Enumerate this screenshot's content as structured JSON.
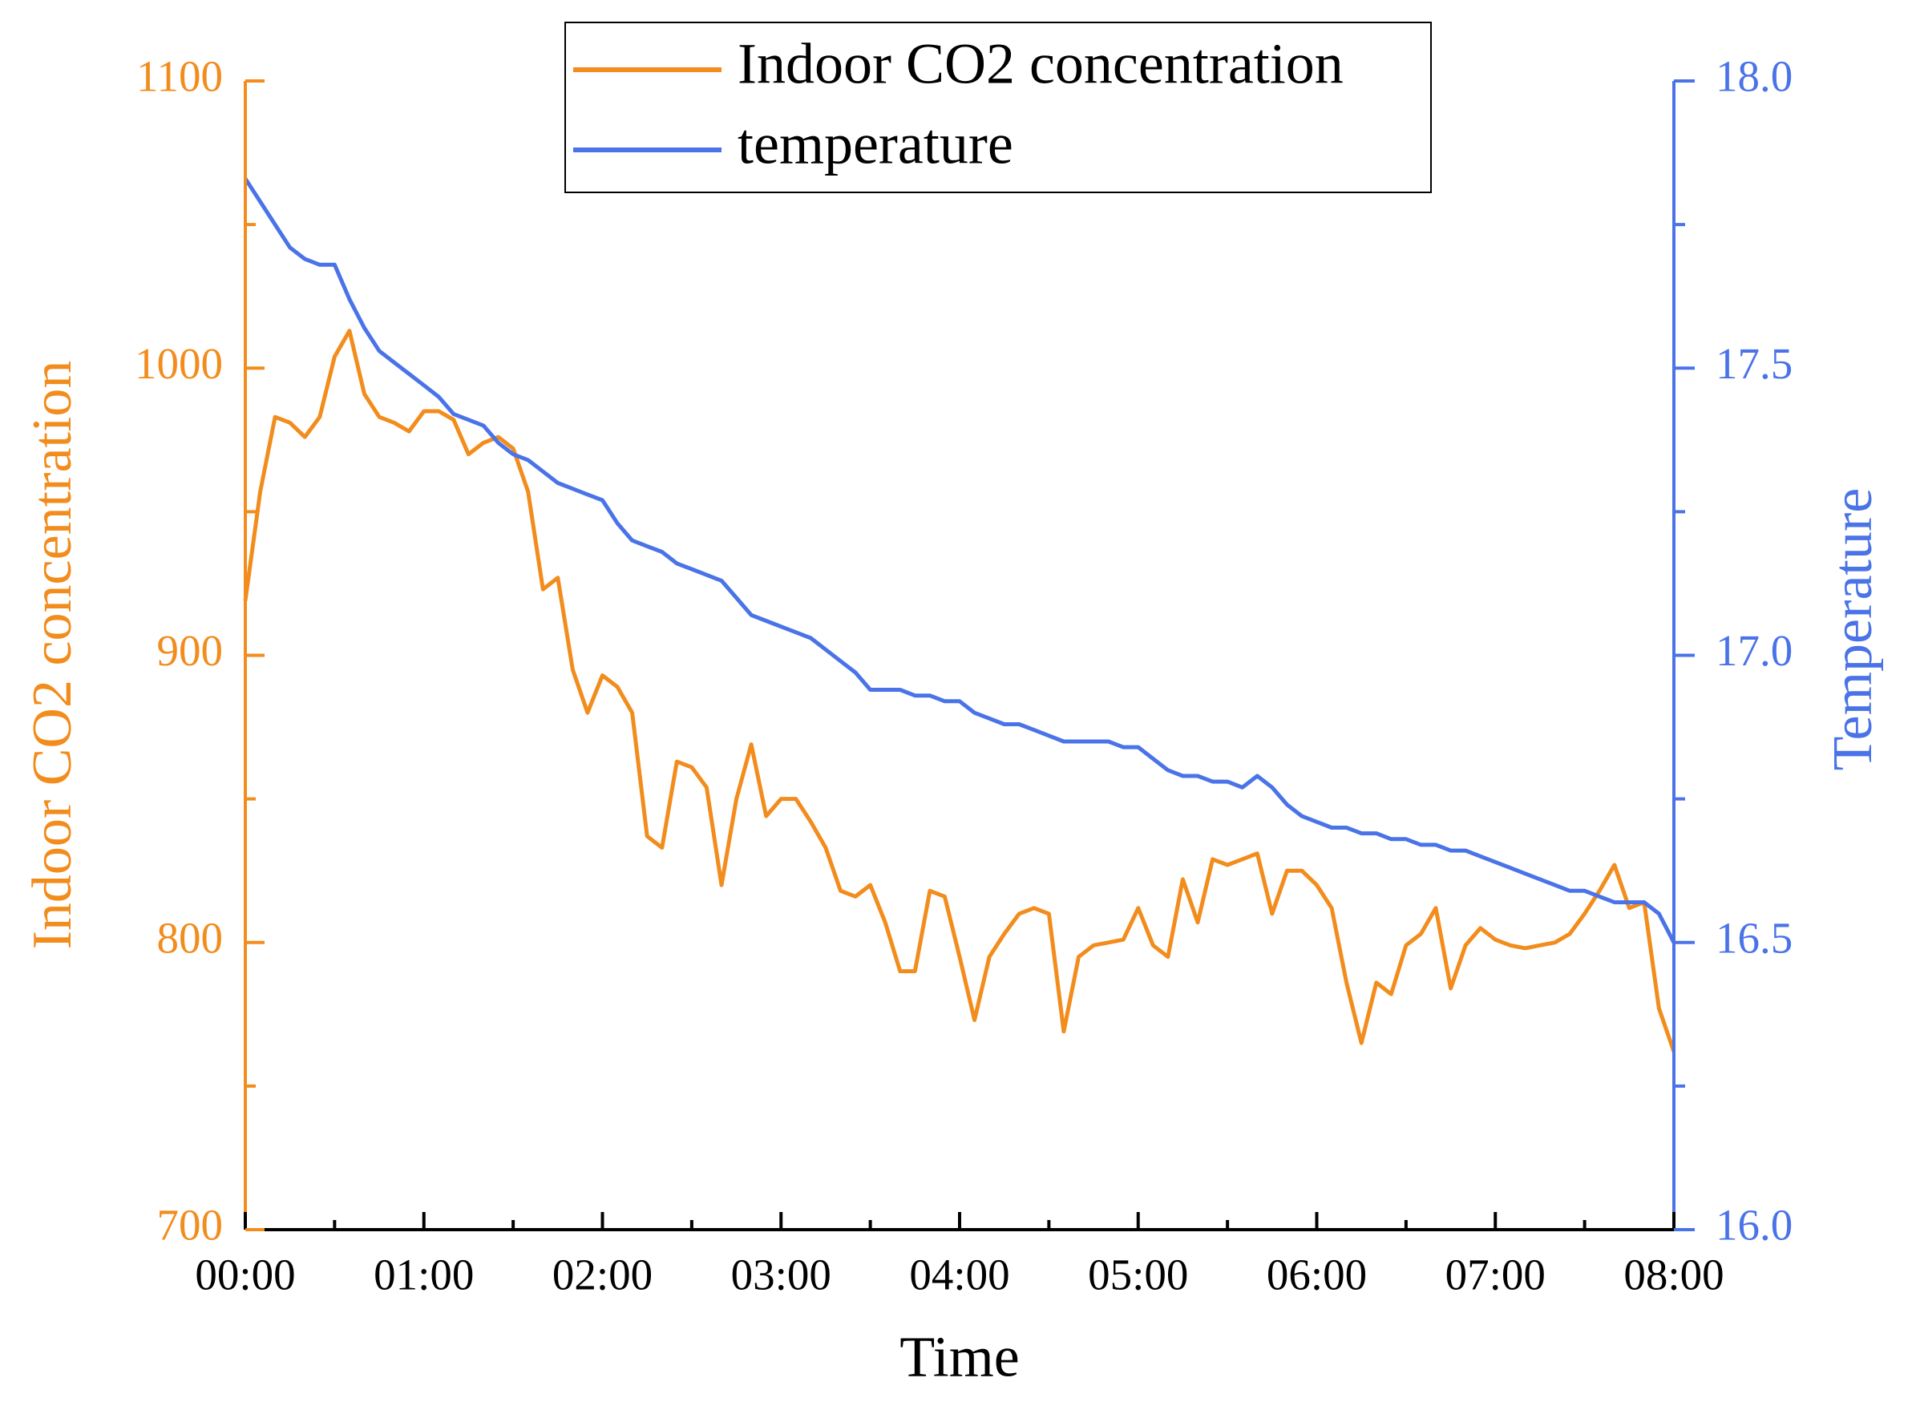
{
  "chart_data": {
    "type": "line",
    "x_label": "Time",
    "y_label": "Indoor CO2 concentration",
    "y2_label": "Temperature",
    "x": [
      0,
      5,
      10,
      15,
      20,
      25,
      30,
      35,
      40,
      45,
      50,
      55,
      60,
      65,
      70,
      75,
      80,
      85,
      90,
      95,
      100,
      105,
      110,
      115,
      120,
      125,
      130,
      135,
      140,
      145,
      150,
      155,
      160,
      165,
      170,
      175,
      180,
      185,
      190,
      195,
      200,
      205,
      210,
      215,
      220,
      225,
      230,
      235,
      240,
      245,
      250,
      255,
      260,
      265,
      270,
      275,
      280,
      285,
      290,
      295,
      300,
      305,
      310,
      315,
      320,
      325,
      330,
      335,
      340,
      345,
      350,
      355,
      360,
      365,
      370,
      375,
      380,
      385,
      390,
      395,
      400,
      405,
      410,
      415,
      420,
      425,
      430,
      435,
      440,
      445,
      450,
      455,
      460,
      465,
      470,
      475,
      480
    ],
    "series": [
      {
        "name": "Indoor CO2 concentration",
        "color": "#f28c1c",
        "axis": "y",
        "values": [
          919,
          957,
          983,
          981,
          976,
          983,
          1004,
          1013,
          991,
          983,
          981,
          978,
          985,
          985,
          982,
          970,
          974,
          976,
          972,
          957,
          923,
          927,
          895,
          880,
          893,
          889,
          880,
          837,
          833,
          863,
          861,
          854,
          820,
          850,
          869,
          844,
          850,
          850,
          842,
          833,
          818,
          816,
          820,
          807,
          790,
          790,
          818,
          816,
          795,
          773,
          795,
          803,
          810,
          812,
          810,
          769,
          795,
          799,
          800,
          801,
          812,
          799,
          795,
          822,
          807,
          829,
          827,
          829,
          831,
          810,
          825,
          825,
          820,
          812,
          786,
          765,
          786,
          782,
          799,
          803,
          812,
          784,
          799,
          805,
          801,
          799,
          798,
          799,
          800,
          803,
          810,
          818,
          827,
          812,
          814,
          777,
          762
        ]
      },
      {
        "name": "temperature",
        "color": "#4a73e8",
        "axis": "y2",
        "values": [
          17.83,
          17.79,
          17.75,
          17.71,
          17.69,
          17.68,
          17.68,
          17.62,
          17.57,
          17.53,
          17.51,
          17.49,
          17.47,
          17.45,
          17.42,
          17.41,
          17.4,
          17.37,
          17.35,
          17.34,
          17.32,
          17.3,
          17.29,
          17.28,
          17.27,
          17.23,
          17.2,
          17.19,
          17.18,
          17.16,
          17.15,
          17.14,
          17.13,
          17.1,
          17.07,
          17.06,
          17.05,
          17.04,
          17.03,
          17.01,
          16.99,
          16.97,
          16.94,
          16.94,
          16.94,
          16.93,
          16.93,
          16.92,
          16.92,
          16.9,
          16.89,
          16.88,
          16.88,
          16.87,
          16.86,
          16.85,
          16.85,
          16.85,
          16.85,
          16.84,
          16.84,
          16.82,
          16.8,
          16.79,
          16.79,
          16.78,
          16.78,
          16.77,
          16.79,
          16.77,
          16.74,
          16.72,
          16.71,
          16.7,
          16.7,
          16.69,
          16.69,
          16.68,
          16.68,
          16.67,
          16.67,
          16.66,
          16.66,
          16.65,
          16.64,
          16.63,
          16.62,
          16.61,
          16.6,
          16.59,
          16.59,
          16.58,
          16.57,
          16.57,
          16.57,
          16.55,
          16.5
        ]
      }
    ],
    "xlim": [
      0,
      480
    ],
    "xticks": [
      {
        "value": 0,
        "label": "00:00"
      },
      {
        "value": 60,
        "label": "01:00"
      },
      {
        "value": 120,
        "label": "02:00"
      },
      {
        "value": 180,
        "label": "03:00"
      },
      {
        "value": 240,
        "label": "04:00"
      },
      {
        "value": 300,
        "label": "05:00"
      },
      {
        "value": 360,
        "label": "06:00"
      },
      {
        "value": 420,
        "label": "07:00"
      },
      {
        "value": 480,
        "label": "08:00"
      }
    ],
    "xminorticks": [
      30,
      90,
      150,
      210,
      270,
      330,
      390,
      450
    ],
    "ylim": [
      700,
      1100
    ],
    "yticks": [
      700,
      800,
      900,
      1000,
      1100
    ],
    "yminorticks": [
      750,
      850,
      950,
      1050
    ],
    "y2lim": [
      16.0,
      18.0
    ],
    "y2ticks": [
      {
        "value": 16.0,
        "label": "16.0"
      },
      {
        "value": 16.5,
        "label": "16.5"
      },
      {
        "value": 17.0,
        "label": "17.0"
      },
      {
        "value": 17.5,
        "label": "17.5"
      },
      {
        "value": 18.0,
        "label": "18.0"
      }
    ],
    "y2minorticks": [
      16.25,
      16.75,
      17.25,
      17.75
    ],
    "legend": "top"
  }
}
